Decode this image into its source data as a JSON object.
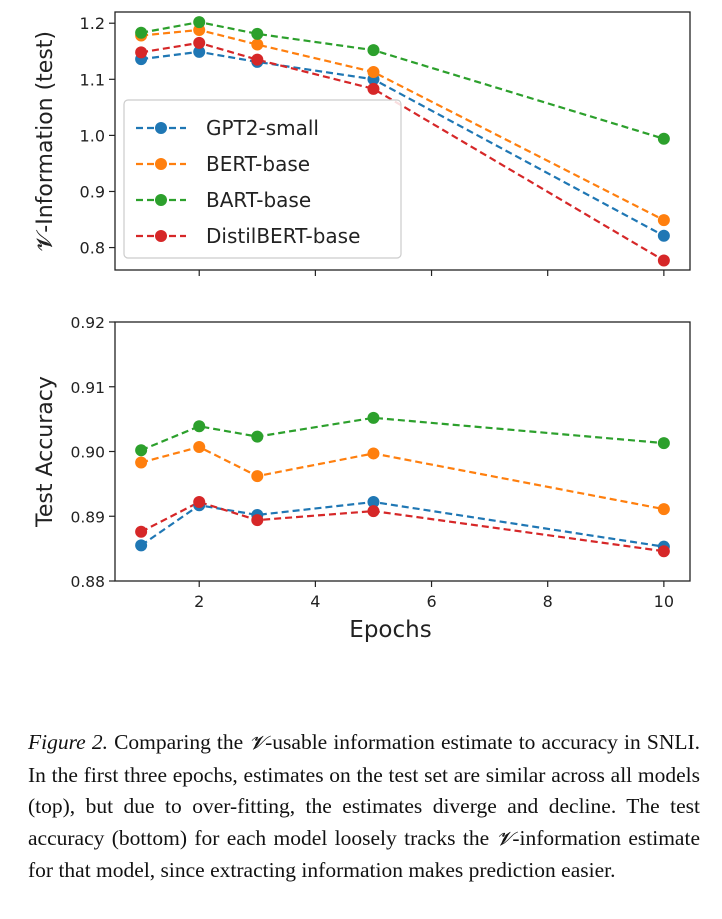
{
  "chart_data": [
    {
      "type": "line",
      "panel": "top",
      "x": [
        1,
        2,
        3,
        5,
        10
      ],
      "ylabel": "𝓥-Information (test)",
      "xlabel": "",
      "ylim": [
        0.76,
        1.22
      ],
      "xlim": [
        0.55,
        10.45
      ],
      "yticks": [
        0.8,
        0.9,
        1.0,
        1.1,
        1.2
      ],
      "ytick_labels": [
        "0.8",
        "0.9",
        "1.0",
        "1.1",
        "1.2"
      ],
      "xticks": [
        2,
        4,
        6,
        8,
        10
      ],
      "xtick_labels": [],
      "grid": false,
      "legend_loc": "center-left",
      "series": [
        {
          "name": "GPT2-small",
          "color": "#1f77b4",
          "values": [
            1.136,
            1.149,
            1.131,
            1.1,
            0.821
          ]
        },
        {
          "name": "BERT-base",
          "color": "#ff7f0e",
          "values": [
            1.178,
            1.188,
            1.162,
            1.113,
            0.849
          ]
        },
        {
          "name": "BART-base",
          "color": "#2ca02c",
          "values": [
            1.183,
            1.202,
            1.181,
            1.152,
            0.994
          ]
        },
        {
          "name": "DistilBERT-base",
          "color": "#d62728",
          "values": [
            1.148,
            1.165,
            1.135,
            1.083,
            0.777
          ]
        }
      ]
    },
    {
      "type": "line",
      "panel": "bottom",
      "x": [
        1,
        2,
        3,
        5,
        10
      ],
      "ylabel": "Test Accuracy",
      "xlabel": "Epochs",
      "ylim": [
        0.88,
        0.92
      ],
      "xlim": [
        0.55,
        10.45
      ],
      "yticks": [
        0.88,
        0.89,
        0.9,
        0.91,
        0.92
      ],
      "ytick_labels": [
        "0.88",
        "0.89",
        "0.90",
        "0.91",
        "0.92"
      ],
      "xticks": [
        2,
        4,
        6,
        8,
        10
      ],
      "xtick_labels": [
        "2",
        "4",
        "6",
        "8",
        "10"
      ],
      "grid": false,
      "series": [
        {
          "name": "GPT2-small",
          "color": "#1f77b4",
          "values": [
            0.8855,
            0.8917,
            0.8902,
            0.8922,
            0.8853
          ]
        },
        {
          "name": "BERT-base",
          "color": "#ff7f0e",
          "values": [
            0.8983,
            0.9007,
            0.8962,
            0.8997,
            0.8911
          ]
        },
        {
          "name": "BART-base",
          "color": "#2ca02c",
          "values": [
            0.9002,
            0.9039,
            0.9023,
            0.9052,
            0.9013
          ]
        },
        {
          "name": "DistilBERT-base",
          "color": "#d62728",
          "values": [
            0.8876,
            0.8922,
            0.8894,
            0.8908,
            0.8846
          ]
        }
      ]
    }
  ],
  "caption": {
    "label": "Figure 2.",
    "symbol": "𝓥",
    "part1": " Comparing the ",
    "part2": "-usable information estimate to accuracy in SNLI. In the first three epochs, estimates on the test set are similar across all models (top), but due to over-fitting, the estimates diverge and decline. The test accuracy (bottom) for each model loosely tracks the ",
    "part3": "-information estimate for that model, since extracting information makes prediction easier."
  }
}
